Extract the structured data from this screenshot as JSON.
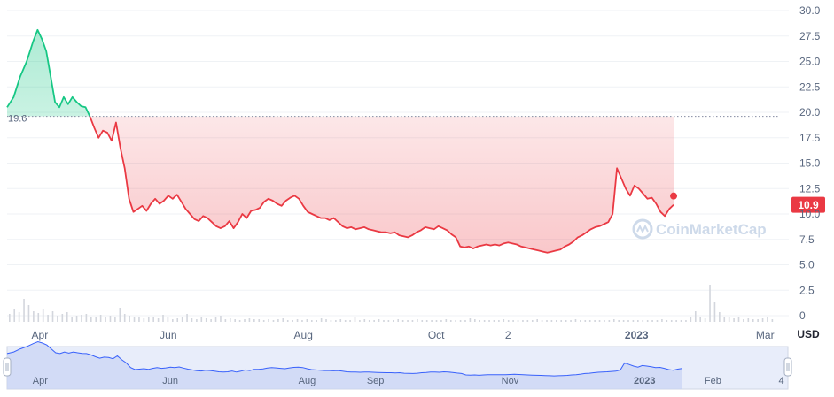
{
  "chart_data": {
    "type": "area",
    "currency_unit": "USD",
    "y_ticks": [
      0,
      2.5,
      5.0,
      7.5,
      10.0,
      12.5,
      15.0,
      17.5,
      20.0,
      22.5,
      25.0,
      27.5,
      30.0
    ],
    "y_tick_labels": [
      "0",
      "2.5",
      "5.0",
      "7.5",
      "10.0",
      "12.5",
      "15.0",
      "17.5",
      "20.0",
      "22.5",
      "25.0",
      "27.5",
      "30.0"
    ],
    "ylim": [
      0,
      30
    ],
    "x_ticks": [
      {
        "label": "Apr",
        "day": 12,
        "bold": false
      },
      {
        "label": "Jun",
        "day": 71,
        "bold": false
      },
      {
        "label": "Aug",
        "day": 133,
        "bold": false
      },
      {
        "label": "Oct",
        "day": 194,
        "bold": false
      },
      {
        "label": "2",
        "day": 227,
        "bold": false
      },
      {
        "label": "2023",
        "day": 286,
        "bold": true
      },
      {
        "label": "Mar",
        "day": 345,
        "bold": false
      }
    ],
    "x_range_days": [
      -3,
      351
    ],
    "reference_line": {
      "value": 19.6,
      "label": "19.6"
    },
    "last_value": {
      "value": 10.9,
      "label": "10.9"
    },
    "colors": {
      "above": "#16c784",
      "below": "#ea3943",
      "volume": "#d3d6dd"
    },
    "series": [
      {
        "points": [
          [
            -3,
            20.5
          ],
          [
            0,
            21.5
          ],
          [
            3,
            23.5
          ],
          [
            6,
            25.0
          ],
          [
            9,
            27.0
          ],
          [
            11,
            28.1
          ],
          [
            13,
            27.2
          ],
          [
            15,
            26.0
          ],
          [
            17,
            23.5
          ],
          [
            19,
            21.0
          ],
          [
            21,
            20.5
          ],
          [
            23,
            21.5
          ],
          [
            25,
            20.8
          ],
          [
            27,
            21.5
          ],
          [
            29,
            21.0
          ],
          [
            31,
            20.6
          ],
          [
            33,
            20.5
          ],
          [
            35,
            19.6
          ],
          [
            37,
            18.5
          ],
          [
            39,
            17.5
          ],
          [
            41,
            18.2
          ],
          [
            43,
            18.0
          ],
          [
            45,
            17.2
          ],
          [
            47,
            19.0
          ],
          [
            49,
            16.5
          ],
          [
            51,
            14.5
          ],
          [
            53,
            11.5
          ],
          [
            55,
            10.2
          ],
          [
            57,
            10.5
          ],
          [
            59,
            10.8
          ],
          [
            61,
            10.3
          ],
          [
            63,
            11.0
          ],
          [
            65,
            11.5
          ],
          [
            67,
            11.0
          ],
          [
            69,
            11.3
          ],
          [
            71,
            11.8
          ],
          [
            73,
            11.5
          ],
          [
            75,
            11.9
          ],
          [
            77,
            11.2
          ],
          [
            79,
            10.5
          ],
          [
            81,
            10.0
          ],
          [
            83,
            9.5
          ],
          [
            85,
            9.3
          ],
          [
            87,
            9.8
          ],
          [
            89,
            9.6
          ],
          [
            91,
            9.2
          ],
          [
            93,
            8.8
          ],
          [
            95,
            8.6
          ],
          [
            97,
            8.8
          ],
          [
            99,
            9.3
          ],
          [
            101,
            8.6
          ],
          [
            103,
            9.2
          ],
          [
            105,
            10.0
          ],
          [
            107,
            9.6
          ],
          [
            109,
            10.3
          ],
          [
            111,
            10.4
          ],
          [
            113,
            10.6
          ],
          [
            115,
            11.2
          ],
          [
            117,
            11.5
          ],
          [
            119,
            11.3
          ],
          [
            121,
            11.0
          ],
          [
            123,
            10.8
          ],
          [
            125,
            11.3
          ],
          [
            127,
            11.6
          ],
          [
            129,
            11.8
          ],
          [
            131,
            11.5
          ],
          [
            133,
            10.8
          ],
          [
            135,
            10.2
          ],
          [
            137,
            10.0
          ],
          [
            139,
            9.8
          ],
          [
            141,
            9.6
          ],
          [
            143,
            9.6
          ],
          [
            145,
            9.4
          ],
          [
            147,
            9.6
          ],
          [
            149,
            9.2
          ],
          [
            151,
            8.8
          ],
          [
            153,
            8.6
          ],
          [
            155,
            8.7
          ],
          [
            157,
            8.5
          ],
          [
            159,
            8.6
          ],
          [
            161,
            8.7
          ],
          [
            163,
            8.5
          ],
          [
            165,
            8.4
          ],
          [
            167,
            8.3
          ],
          [
            169,
            8.2
          ],
          [
            171,
            8.2
          ],
          [
            173,
            8.1
          ],
          [
            175,
            8.2
          ],
          [
            177,
            7.9
          ],
          [
            179,
            7.8
          ],
          [
            181,
            7.7
          ],
          [
            183,
            7.9
          ],
          [
            185,
            8.2
          ],
          [
            187,
            8.4
          ],
          [
            189,
            8.7
          ],
          [
            191,
            8.6
          ],
          [
            193,
            8.5
          ],
          [
            195,
            8.8
          ],
          [
            197,
            8.6
          ],
          [
            199,
            8.4
          ],
          [
            201,
            8.0
          ],
          [
            203,
            7.7
          ],
          [
            205,
            6.8
          ],
          [
            207,
            6.7
          ],
          [
            209,
            6.8
          ],
          [
            211,
            6.6
          ],
          [
            213,
            6.8
          ],
          [
            215,
            6.9
          ],
          [
            217,
            7.0
          ],
          [
            219,
            6.9
          ],
          [
            221,
            7.0
          ],
          [
            223,
            6.9
          ],
          [
            225,
            7.1
          ],
          [
            227,
            7.2
          ],
          [
            229,
            7.1
          ],
          [
            231,
            7.0
          ],
          [
            233,
            6.8
          ],
          [
            235,
            6.7
          ],
          [
            237,
            6.6
          ],
          [
            239,
            6.5
          ],
          [
            241,
            6.4
          ],
          [
            243,
            6.3
          ],
          [
            245,
            6.2
          ],
          [
            247,
            6.3
          ],
          [
            249,
            6.4
          ],
          [
            251,
            6.5
          ],
          [
            253,
            6.8
          ],
          [
            255,
            7.0
          ],
          [
            257,
            7.3
          ],
          [
            259,
            7.7
          ],
          [
            261,
            7.9
          ],
          [
            263,
            8.2
          ],
          [
            265,
            8.5
          ],
          [
            267,
            8.7
          ],
          [
            269,
            8.8
          ],
          [
            271,
            9.0
          ],
          [
            273,
            9.2
          ],
          [
            275,
            10.0
          ],
          [
            277,
            14.5
          ],
          [
            279,
            13.5
          ],
          [
            281,
            12.5
          ],
          [
            283,
            11.8
          ],
          [
            285,
            12.8
          ],
          [
            287,
            12.5
          ],
          [
            289,
            12.0
          ],
          [
            291,
            11.5
          ],
          [
            293,
            11.6
          ],
          [
            295,
            11.0
          ],
          [
            297,
            10.2
          ],
          [
            299,
            9.8
          ],
          [
            301,
            10.5
          ],
          [
            303,
            10.9
          ]
        ]
      }
    ],
    "volume": [
      0.9,
      1.4,
      1.1,
      2.6,
      1.9,
      1.2,
      1.0,
      1.5,
      0.8,
      1.2,
      0.7,
      0.9,
      1.1,
      0.6,
      0.7,
      0.8,
      0.9,
      0.6,
      0.5,
      0.8,
      0.6,
      0.7,
      0.5,
      1.6,
      0.9,
      0.7,
      0.6,
      0.5,
      0.4,
      0.6,
      0.5,
      0.4,
      0.8,
      0.5,
      0.3,
      0.4,
      0.6,
      0.9,
      0.4,
      0.3,
      0.5,
      0.4,
      0.3,
      0.5,
      0.7,
      0.3,
      0.4,
      0.3,
      0.2,
      0.3,
      0.4,
      0.3,
      0.3,
      0.2,
      0.3,
      0.2,
      0.3,
      0.4,
      0.2,
      0.2,
      0.3,
      0.2,
      0.3,
      0.2,
      0.2,
      0.4,
      0.3,
      0.2,
      0.2,
      0.3,
      0.2,
      0.2,
      0.5,
      0.2,
      0.3,
      0.2,
      0.2,
      0.3,
      0.2,
      0.2,
      0.2,
      0.3,
      0.2,
      0.2,
      0.2,
      0.3,
      0.2,
      0.2,
      0.2,
      0.2,
      0.2,
      0.3,
      0.2,
      0.2,
      0.2,
      0.2,
      0.4,
      0.3,
      0.2,
      0.2,
      0.2,
      0.2,
      0.2,
      0.3,
      0.2,
      0.2,
      0.2,
      0.2,
      0.2,
      0.2,
      0.3,
      0.2,
      0.2,
      0.2,
      0.2,
      0.2,
      0.2,
      0.2,
      0.3,
      0.2,
      0.2,
      0.2,
      0.2,
      0.2,
      0.2,
      0.2,
      0.3,
      0.2,
      0.2,
      0.2,
      0.2,
      0.2,
      0.2,
      0.2,
      0.2,
      0.2,
      0.3,
      0.2,
      0.2,
      0.2,
      0.2,
      0.2,
      0.5,
      1.2,
      0.6,
      0.4,
      4.2,
      2.2,
      1.1,
      0.6,
      0.5,
      0.4,
      0.5,
      0.3,
      0.4,
      0.3,
      0.3,
      0.4,
      0.6,
      0.3
    ],
    "navigator": {
      "x_ticks": [
        {
          "label": "Apr",
          "day": 12,
          "bold": false
        },
        {
          "label": "Jun",
          "day": 71,
          "bold": false
        },
        {
          "label": "Aug",
          "day": 133,
          "bold": false
        },
        {
          "label": "Sep",
          "day": 164,
          "bold": false
        },
        {
          "label": "Nov",
          "day": 225,
          "bold": false
        },
        {
          "label": "2023",
          "day": 286,
          "bold": true
        },
        {
          "label": "Feb",
          "day": 317,
          "bold": false
        },
        {
          "label": "4",
          "day": 348,
          "bold": false
        }
      ]
    }
  },
  "watermark": {
    "text": "CoinMarketCap",
    "icon": "coinmarketcap-logo"
  }
}
